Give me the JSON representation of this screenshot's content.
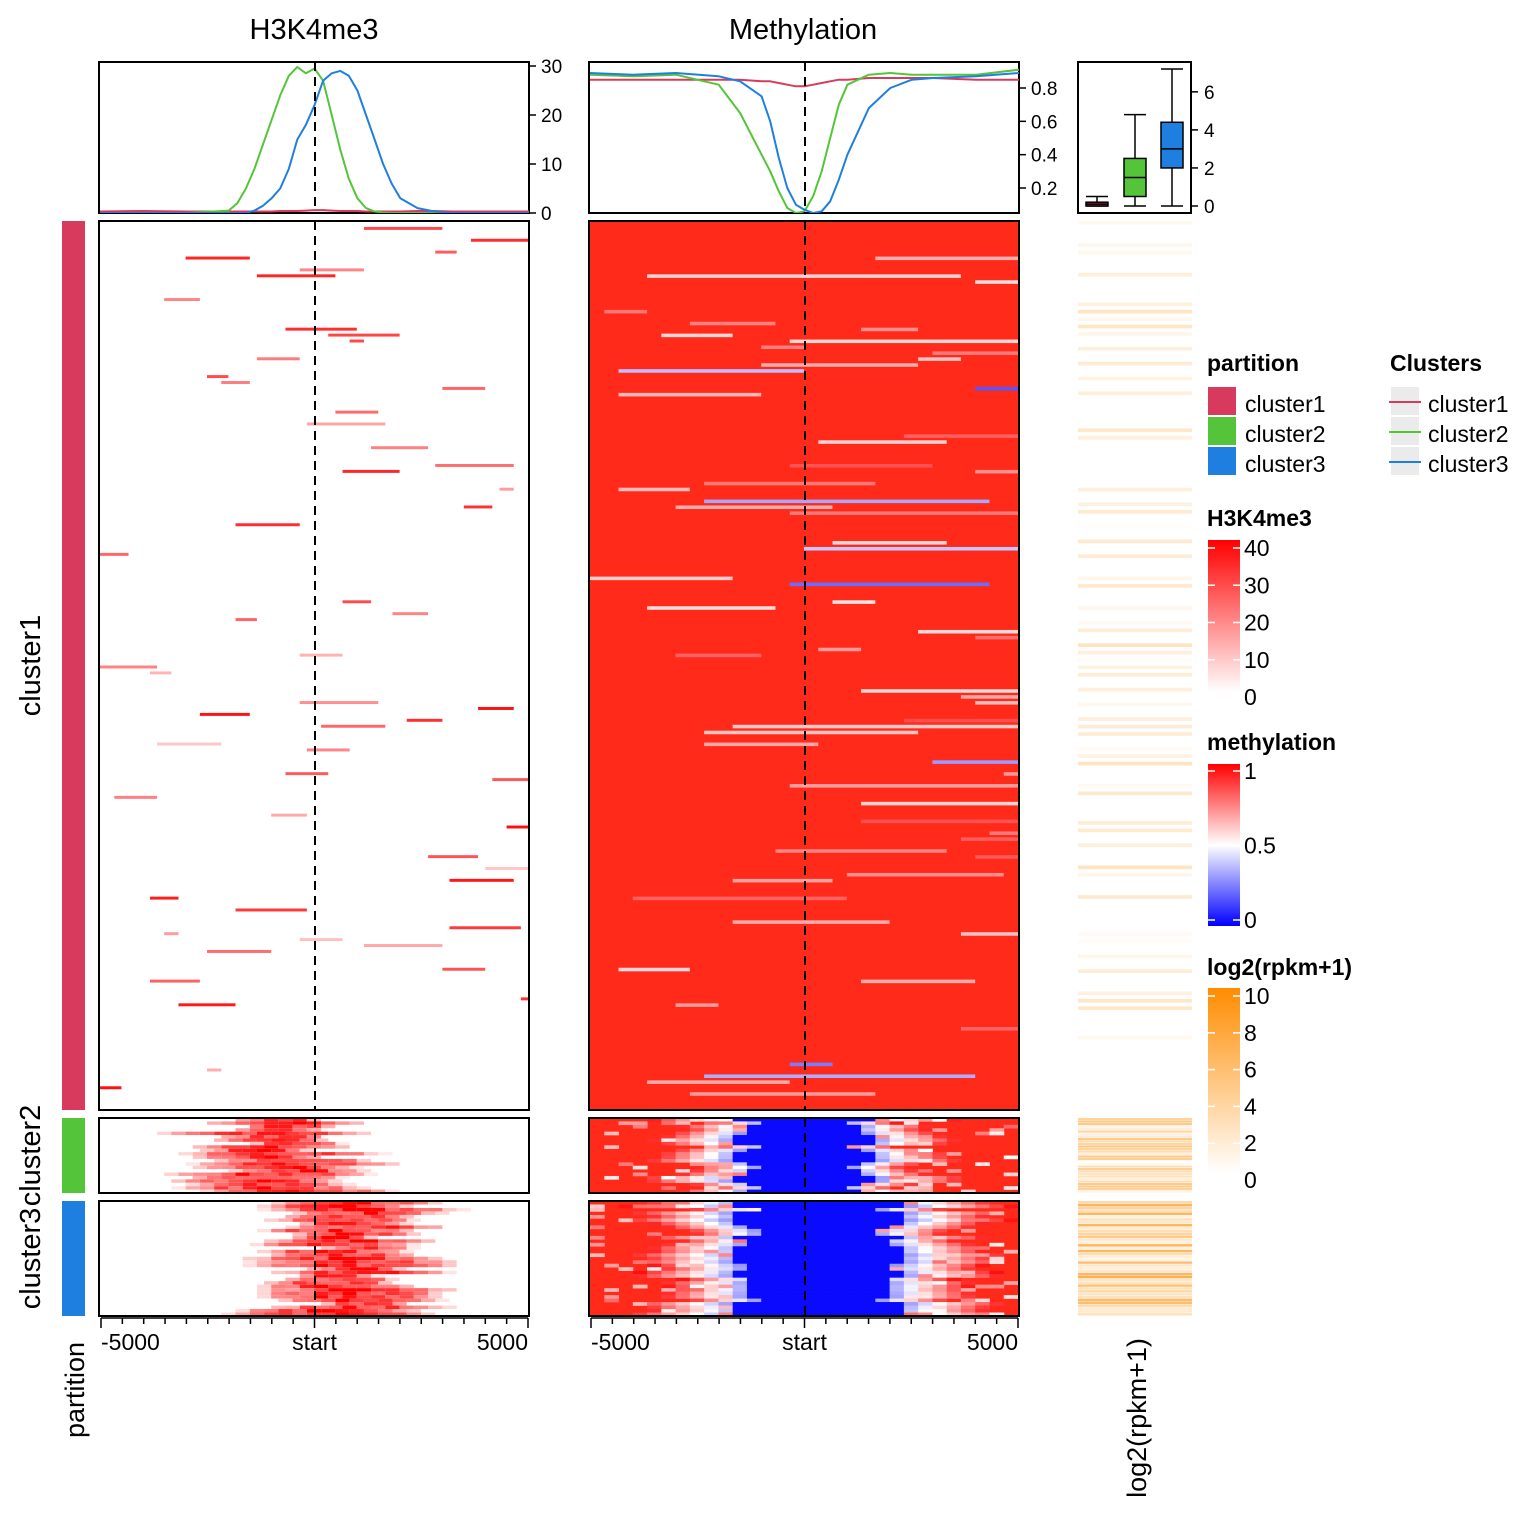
{
  "chart_data": [
    {
      "type": "line",
      "id": "h3k4me3-profile",
      "title": "H3K4me3",
      "x_ticks": [
        "-5000",
        "start",
        "5000"
      ],
      "x_range": [
        -5000,
        5000
      ],
      "ylim": [
        0,
        30
      ],
      "y_ticks": [
        "0",
        "10",
        "20",
        "30"
      ],
      "x": [
        -5000,
        -4000,
        -3000,
        -2000,
        -1800,
        -1600,
        -1400,
        -1200,
        -1000,
        -800,
        -600,
        -400,
        -200,
        0,
        200,
        400,
        600,
        800,
        1000,
        1200,
        1400,
        1600,
        1800,
        2000,
        2400,
        2800,
        3200,
        4000,
        5000
      ],
      "series": [
        {
          "name": "cluster1",
          "color": "#d73a5c",
          "values": [
            0.3,
            0.4,
            0.3,
            0.3,
            0.3,
            0.3,
            0.3,
            0.3,
            0.3,
            0.4,
            0.4,
            0.4,
            0.5,
            0.6,
            0.6,
            0.5,
            0.4,
            0.4,
            0.4,
            0.3,
            0.3,
            0.3,
            0.3,
            0.3,
            0.4,
            0.4,
            0.3,
            0.3,
            0.3
          ]
        },
        {
          "name": "cluster2",
          "color": "#54c53b",
          "values": [
            0,
            0,
            0,
            0.5,
            2,
            5,
            9,
            14,
            19,
            24,
            28,
            29.8,
            28.5,
            29.5,
            27,
            20,
            13,
            7,
            3,
            1,
            0.3,
            0.1,
            0,
            0,
            0,
            0,
            0,
            0,
            0
          ]
        },
        {
          "name": "cluster3",
          "color": "#1f7fe0",
          "values": [
            0,
            0,
            0,
            0,
            0,
            0,
            0.5,
            1.5,
            3,
            5,
            9,
            15,
            18,
            22,
            27,
            28.5,
            29,
            28,
            25,
            20,
            15,
            10,
            6,
            3,
            1,
            0.3,
            0,
            0,
            0
          ]
        }
      ]
    },
    {
      "type": "line",
      "id": "methylation-profile",
      "title": "Methylation",
      "x_ticks": [
        "-5000",
        "start",
        "5000"
      ],
      "x_range": [
        -5000,
        5000
      ],
      "ylim": [
        0.05,
        0.95
      ],
      "y_ticks": [
        "0.2",
        "0.4",
        "0.6",
        "0.8"
      ],
      "x": [
        -5000,
        -4000,
        -3000,
        -2000,
        -1500,
        -1000,
        -800,
        -600,
        -400,
        -200,
        0,
        200,
        400,
        600,
        800,
        1000,
        1500,
        2000,
        2500,
        3000,
        4000,
        5000
      ],
      "series": [
        {
          "name": "cluster1",
          "color": "#d73a5c",
          "values": [
            0.85,
            0.85,
            0.85,
            0.85,
            0.85,
            0.84,
            0.84,
            0.83,
            0.82,
            0.81,
            0.81,
            0.82,
            0.83,
            0.84,
            0.85,
            0.85,
            0.86,
            0.86,
            0.86,
            0.86,
            0.85,
            0.85
          ]
        },
        {
          "name": "cluster2",
          "color": "#54c53b",
          "values": [
            0.88,
            0.87,
            0.88,
            0.82,
            0.65,
            0.4,
            0.3,
            0.18,
            0.08,
            0.05,
            0.06,
            0.15,
            0.3,
            0.5,
            0.7,
            0.82,
            0.88,
            0.89,
            0.88,
            0.88,
            0.88,
            0.91
          ]
        },
        {
          "name": "cluster3",
          "color": "#1f7fe0",
          "values": [
            0.89,
            0.88,
            0.89,
            0.87,
            0.84,
            0.75,
            0.6,
            0.38,
            0.2,
            0.1,
            0.07,
            0.05,
            0.06,
            0.12,
            0.25,
            0.4,
            0.68,
            0.8,
            0.85,
            0.86,
            0.87,
            0.89
          ]
        }
      ]
    },
    {
      "type": "box",
      "id": "expression-boxplot",
      "ylim": [
        0,
        7.2
      ],
      "y_ticks": [
        "0",
        "2",
        "4",
        "6"
      ],
      "boxes": [
        {
          "name": "cluster1",
          "color": "#d73a5c",
          "min": 0,
          "q1": 0.0,
          "median": 0.1,
          "q3": 0.2,
          "max": 0.5
        },
        {
          "name": "cluster2",
          "color": "#54c53b",
          "min": 0,
          "q1": 0.5,
          "median": 1.5,
          "q3": 2.5,
          "max": 4.8
        },
        {
          "name": "cluster3",
          "color": "#1f7fe0",
          "min": 0,
          "q1": 2.0,
          "median": 3.0,
          "q3": 4.4,
          "max": 7.2
        }
      ]
    },
    {
      "type": "heatmap",
      "id": "h3k4me3-heatmap",
      "x_ticks": [
        "-5000",
        "start",
        "5000"
      ],
      "color_scale": {
        "0": "#ffffff",
        "40": "#ff0000"
      },
      "row_groups": [
        {
          "name": "cluster1",
          "rows": 240,
          "signal": "sparse"
        },
        {
          "name": "cluster2",
          "rows": 22,
          "signal": "centered_left_peak"
        },
        {
          "name": "cluster3",
          "rows": 33,
          "signal": "centered_right_peak"
        }
      ]
    },
    {
      "type": "heatmap",
      "id": "methylation-heatmap",
      "x_ticks": [
        "-5000",
        "start",
        "5000"
      ],
      "color_scale": {
        "0": "#0000ff",
        "0.5": "#ffffff",
        "1": "#ff0000"
      },
      "row_groups": [
        {
          "name": "cluster1",
          "rows": 240,
          "signal": "high_methylation"
        },
        {
          "name": "cluster2",
          "rows": 22,
          "signal": "narrow_unmethylated_center"
        },
        {
          "name": "cluster3",
          "rows": 33,
          "signal": "wide_unmethylated_center"
        }
      ]
    },
    {
      "type": "heatmap",
      "id": "expression-column",
      "xlabel": "log2(rpkm+1)",
      "color_scale": {
        "0": "#ffffff",
        "10": "#ff8c00"
      }
    }
  ],
  "titles": {
    "h3k4me3": "H3K4me3",
    "methylation": "Methylation"
  },
  "row_labels": [
    "cluster1",
    "cluster2",
    "cluster3"
  ],
  "partition_label": "partition",
  "expr_label": "log2(rpkm+1)",
  "partition_colors": {
    "cluster1": "#d73a5c",
    "cluster2": "#54c53b",
    "cluster3": "#1f7fe0"
  },
  "legends": {
    "partition": {
      "title": "partition",
      "items": [
        "cluster1",
        "cluster2",
        "cluster3"
      ]
    },
    "clusters": {
      "title": "Clusters",
      "items": [
        "cluster1",
        "cluster2",
        "cluster3"
      ]
    },
    "h3k4me3": {
      "title": "H3K4me3",
      "ticks": [
        "40",
        "30",
        "20",
        "10",
        "0"
      ]
    },
    "methylation": {
      "title": "methylation",
      "ticks": [
        "1",
        "0.5",
        "0"
      ]
    },
    "expression": {
      "title": "log2(rpkm+1)",
      "ticks": [
        "10",
        "8",
        "6",
        "4",
        "2",
        "0"
      ]
    }
  }
}
